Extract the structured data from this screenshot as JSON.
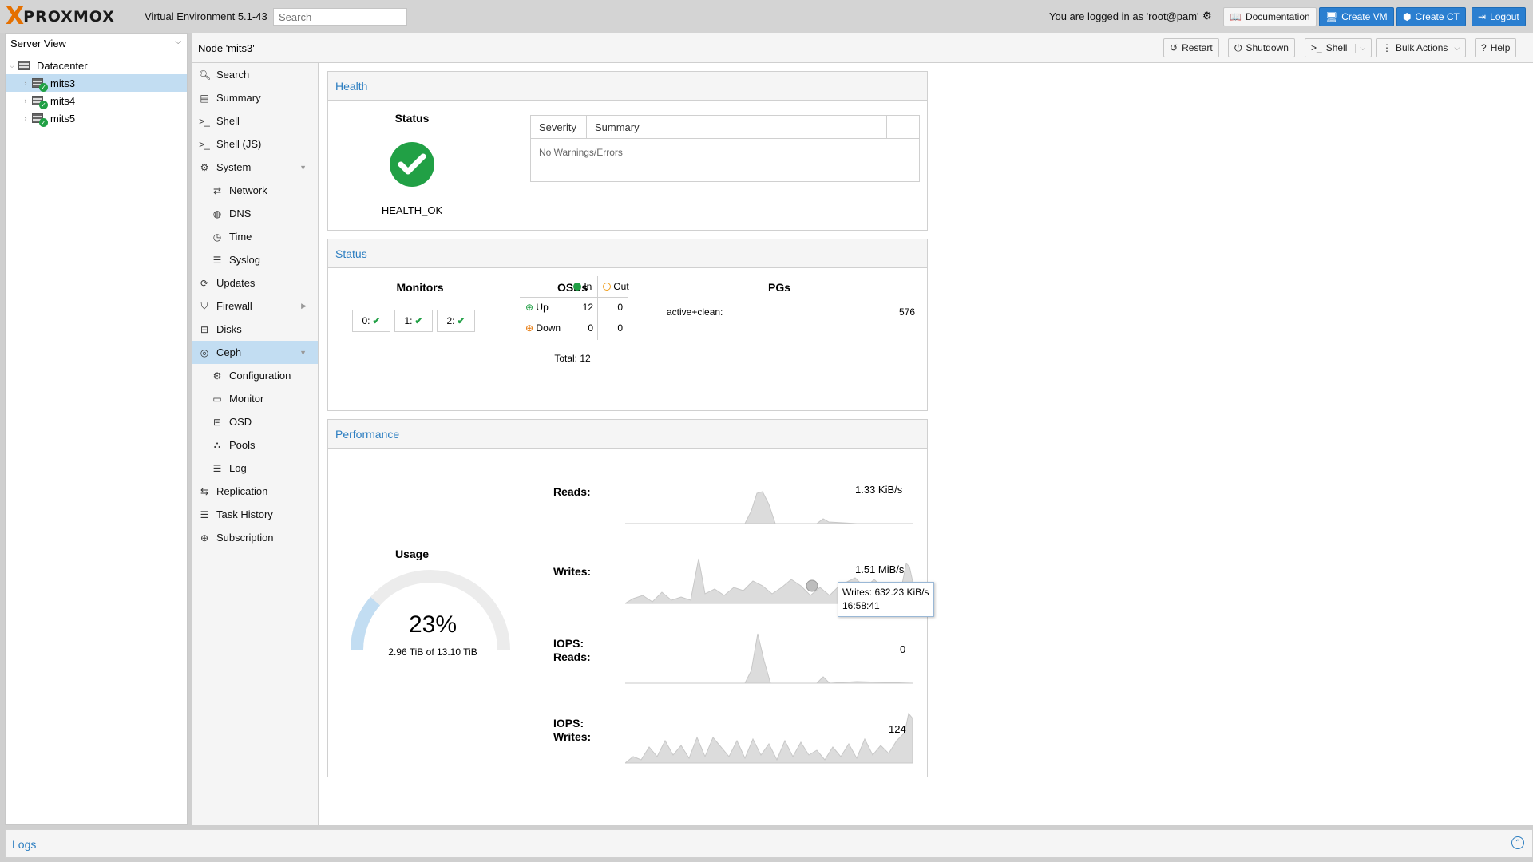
{
  "topbar": {
    "logo_x": "X",
    "logo_brand": "PROXMOX",
    "version": "Virtual Environment 5.1-43",
    "search_placeholder": "Search",
    "login_text": "You are logged in as 'root@pam'",
    "documentation": "Documentation",
    "create_vm": "Create VM",
    "create_ct": "Create CT",
    "logout": "Logout",
    "accent": "#2b7fd0",
    "brand_color": "#e57000"
  },
  "tree": {
    "view": "Server View",
    "items": [
      {
        "label": "Datacenter",
        "icon": "datacenter-icon"
      },
      {
        "label": "mits3",
        "icon": "node-online-icon"
      },
      {
        "label": "mits4",
        "icon": "node-online-icon"
      },
      {
        "label": "mits5",
        "icon": "node-online-icon"
      }
    ]
  },
  "header": {
    "title": "Node 'mits3'",
    "restart": "Restart",
    "shutdown": "Shutdown",
    "shell": "Shell",
    "bulk": "Bulk Actions",
    "help": "Help"
  },
  "nav": {
    "items": [
      {
        "label": "Search",
        "icon": "search-icon"
      },
      {
        "label": "Summary",
        "icon": "summary-icon"
      },
      {
        "label": "Shell",
        "icon": "terminal-icon"
      },
      {
        "label": "Shell (JS)",
        "icon": "terminal-icon"
      },
      {
        "label": "System",
        "icon": "cogs-icon"
      },
      {
        "label": "Network",
        "icon": "network-icon"
      },
      {
        "label": "DNS",
        "icon": "globe-icon"
      },
      {
        "label": "Time",
        "icon": "clock-icon"
      },
      {
        "label": "Syslog",
        "icon": "list-icon"
      },
      {
        "label": "Updates",
        "icon": "refresh-icon"
      },
      {
        "label": "Firewall",
        "icon": "shield-icon"
      },
      {
        "label": "Disks",
        "icon": "disk-icon"
      },
      {
        "label": "Ceph",
        "icon": "ceph-icon"
      },
      {
        "label": "Configuration",
        "icon": "gear-icon"
      },
      {
        "label": "Monitor",
        "icon": "monitor-icon"
      },
      {
        "label": "OSD",
        "icon": "disk-icon"
      },
      {
        "label": "Pools",
        "icon": "sitemap-icon"
      },
      {
        "label": "Log",
        "icon": "list-icon"
      },
      {
        "label": "Replication",
        "icon": "retweet-icon"
      },
      {
        "label": "Task History",
        "icon": "list-icon"
      },
      {
        "label": "Subscription",
        "icon": "support-icon"
      }
    ]
  },
  "health": {
    "title": "Health",
    "status_label": "Status",
    "status_value": "HEALTH_OK",
    "col_severity": "Severity",
    "col_summary": "Summary",
    "empty_text": "No Warnings/Errors"
  },
  "status": {
    "title": "Status",
    "monitors_label": "Monitors",
    "monitors": [
      "0:",
      "1:",
      "2:"
    ],
    "osds_label": "OSDs",
    "col_in": "In",
    "col_out": "Out",
    "row_up": "Up",
    "row_down": "Down",
    "up_in": "12",
    "up_out": "0",
    "down_in": "0",
    "down_out": "0",
    "total": "Total: 12",
    "pgs_label": "PGs",
    "pg_state": "active+clean:",
    "pg_count": "576"
  },
  "performance": {
    "title": "Performance",
    "usage_label": "Usage",
    "usage_percent": "23%",
    "usage_fraction": 0.23,
    "usage_detail": "2.96 TiB of 13.10 TiB",
    "reads_label": "Reads:",
    "reads_value": "1.33 KiB/s",
    "writes_label": "Writes:",
    "writes_value": "1.51 MiB/s",
    "iops_reads_label1": "IOPS:",
    "iops_reads_label2": "Reads:",
    "iops_reads_value": "0",
    "iops_writes_label1": "IOPS:",
    "iops_writes_label2": "Writes:",
    "iops_writes_value": "124",
    "tooltip_line1": "Writes: 632.23 KiB/s",
    "tooltip_line2": "16:58:41"
  },
  "logs": {
    "title": "Logs"
  }
}
